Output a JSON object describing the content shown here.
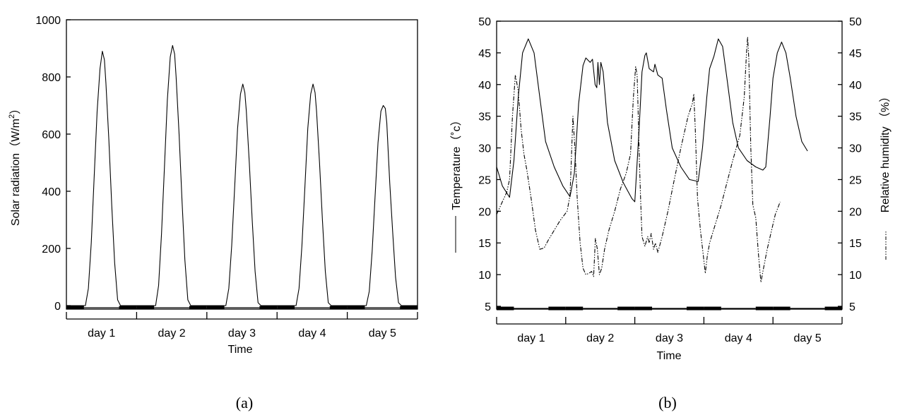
{
  "chart_data": [
    {
      "type": "line",
      "caption": "(a)",
      "xlabel": "Time",
      "ylabel": "Solar radiation (W/m²)",
      "ylabel_parts": {
        "prefix": "Solar radiation（W/m",
        "sup": "2",
        "suffix": "）"
      },
      "ylim": [
        0,
        1000
      ],
      "yticks": [
        "0",
        "200",
        "400",
        "600",
        "800",
        "1000"
      ],
      "categories": [
        "day 1",
        "day 2",
        "day 3",
        "day 4",
        "day 5"
      ],
      "x_unit": "hour of 5-day period (0–120)",
      "series": [
        {
          "style": "solid",
          "points": [
            [
              0,
              0
            ],
            [
              6.5,
              0
            ],
            [
              7.5,
              60
            ],
            [
              8.5,
              220
            ],
            [
              9.5,
              450
            ],
            [
              10.5,
              680
            ],
            [
              11.5,
              830
            ],
            [
              12.3,
              890
            ],
            [
              13,
              860
            ],
            [
              13.5,
              780
            ],
            [
              14.5,
              580
            ],
            [
              15.5,
              350
            ],
            [
              16.5,
              150
            ],
            [
              17.5,
              20
            ],
            [
              18.5,
              0
            ],
            [
              30.5,
              0
            ],
            [
              31.5,
              70
            ],
            [
              32.5,
              250
            ],
            [
              33.5,
              480
            ],
            [
              34.5,
              720
            ],
            [
              35.5,
              870
            ],
            [
              36.3,
              910
            ],
            [
              37,
              880
            ],
            [
              37.5,
              800
            ],
            [
              38.5,
              600
            ],
            [
              39.5,
              370
            ],
            [
              40.5,
              160
            ],
            [
              41.5,
              20
            ],
            [
              42.5,
              0
            ],
            [
              54.5,
              0
            ],
            [
              55.5,
              60
            ],
            [
              56.5,
              210
            ],
            [
              57.5,
              410
            ],
            [
              58.5,
              620
            ],
            [
              59.5,
              740
            ],
            [
              60.3,
              775
            ],
            [
              61,
              745
            ],
            [
              61.5,
              680
            ],
            [
              62.5,
              500
            ],
            [
              63.5,
              300
            ],
            [
              64.5,
              120
            ],
            [
              65.5,
              10
            ],
            [
              66.5,
              0
            ],
            [
              78.5,
              0
            ],
            [
              79.5,
              60
            ],
            [
              80.5,
              210
            ],
            [
              81.5,
              410
            ],
            [
              82.5,
              620
            ],
            [
              83.5,
              740
            ],
            [
              84.3,
              775
            ],
            [
              85,
              745
            ],
            [
              85.5,
              680
            ],
            [
              86.5,
              500
            ],
            [
              87.5,
              300
            ],
            [
              88.5,
              120
            ],
            [
              89.5,
              10
            ],
            [
              90.5,
              0
            ],
            [
              102.5,
              0
            ],
            [
              103.5,
              50
            ],
            [
              104.5,
              190
            ],
            [
              105.5,
              380
            ],
            [
              106.5,
              570
            ],
            [
              107.5,
              680
            ],
            [
              108.3,
              700
            ],
            [
              109,
              690
            ],
            [
              109.5,
              640
            ],
            [
              110.5,
              430
            ],
            [
              111.5,
              260
            ],
            [
              112.5,
              100
            ],
            [
              113.5,
              10
            ],
            [
              114.5,
              0
            ],
            [
              120,
              0
            ]
          ]
        }
      ]
    },
    {
      "type": "line",
      "caption": "(b)",
      "xlabel": "Time",
      "ylabel": "Temperature (°c)",
      "ylabel_text": "Temperature（˚c）",
      "ylabel_right": "Relative humidity (%)",
      "ylabel_right_text": "Relative humidity （%）",
      "ylim": [
        5,
        50
      ],
      "ylim_right": [
        5,
        50
      ],
      "yticks": [
        "5",
        "10",
        "15",
        "20",
        "25",
        "30",
        "35",
        "40",
        "45",
        "50"
      ],
      "categories": [
        "day 1",
        "day 2",
        "day 3",
        "day 4",
        "day 5"
      ],
      "x_unit": "hour of 5-day period (0–120)",
      "series": [
        {
          "axis": "left",
          "style": "solid",
          "points": [
            [
              0,
              27
            ],
            [
              2,
              24
            ],
            [
              4.5,
              22.2
            ],
            [
              6,
              28
            ],
            [
              7.5,
              38
            ],
            [
              9,
              45
            ],
            [
              11,
              47.2
            ],
            [
              13,
              45
            ],
            [
              15,
              38
            ],
            [
              17,
              31
            ],
            [
              20,
              27
            ],
            [
              23,
              24
            ],
            [
              25.5,
              22.3
            ],
            [
              27,
              26
            ],
            [
              28.5,
              37
            ],
            [
              30,
              43
            ],
            [
              31,
              44.2
            ],
            [
              32.5,
              43.5
            ],
            [
              33.3,
              44
            ],
            [
              34.2,
              40
            ],
            [
              34.8,
              39.5
            ],
            [
              35.2,
              43.5
            ],
            [
              35.7,
              40
            ],
            [
              36.2,
              43.5
            ],
            [
              37,
              42
            ],
            [
              38.5,
              34
            ],
            [
              41,
              28
            ],
            [
              44,
              24.5
            ],
            [
              47,
              22
            ],
            [
              48,
              21.5
            ],
            [
              49.5,
              33
            ],
            [
              50.5,
              42
            ],
            [
              51.5,
              44.6
            ],
            [
              52,
              45
            ],
            [
              53,
              42.5
            ],
            [
              54.5,
              42
            ],
            [
              55,
              43.2
            ],
            [
              56,
              41.5
            ],
            [
              57.5,
              41
            ],
            [
              59,
              36
            ],
            [
              61,
              30
            ],
            [
              64,
              27
            ],
            [
              67,
              25
            ],
            [
              70,
              24.7
            ],
            [
              71.5,
              30
            ],
            [
              73,
              38
            ],
            [
              74,
              42.5
            ],
            [
              75.5,
              44.5
            ],
            [
              77,
              47.2
            ],
            [
              78.5,
              46
            ],
            [
              80,
              41
            ],
            [
              82,
              34
            ],
            [
              84,
              30
            ],
            [
              87,
              28
            ],
            [
              90,
              27
            ],
            [
              92.5,
              26.5
            ],
            [
              93.5,
              27
            ],
            [
              95,
              35
            ],
            [
              96,
              41
            ],
            [
              97.5,
              45
            ],
            [
              99,
              46.7
            ],
            [
              100.5,
              45
            ],
            [
              102,
              41
            ],
            [
              104,
              35
            ],
            [
              106,
              31
            ],
            [
              108,
              29.5
            ]
          ]
        },
        {
          "axis": "right",
          "style": "dash-dot-dot",
          "points": [
            [
              0,
              19.5
            ],
            [
              2,
              21.5
            ],
            [
              3.5,
              23
            ],
            [
              4.5,
              25
            ],
            [
              5.5,
              35
            ],
            [
              6.5,
              41.5
            ],
            [
              7.5,
              39
            ],
            [
              8.5,
              33
            ],
            [
              9.5,
              29
            ],
            [
              10.5,
              26.5
            ],
            [
              12,
              22
            ],
            [
              13.5,
              17
            ],
            [
              15,
              14
            ],
            [
              16.5,
              14.2
            ],
            [
              18,
              15.5
            ],
            [
              20,
              17
            ],
            [
              22,
              18.5
            ],
            [
              24.5,
              20
            ],
            [
              25.5,
              22.5
            ],
            [
              26.5,
              35
            ],
            [
              27.2,
              30
            ],
            [
              28,
              22
            ],
            [
              29,
              15
            ],
            [
              30,
              11
            ],
            [
              31,
              10
            ],
            [
              32,
              10.2
            ],
            [
              33,
              10.5
            ],
            [
              33.7,
              9.7
            ],
            [
              34.3,
              15.7
            ],
            [
              35,
              14
            ],
            [
              35.7,
              10
            ],
            [
              36.5,
              11
            ],
            [
              37.5,
              14
            ],
            [
              39,
              17
            ],
            [
              41,
              20
            ],
            [
              43,
              23.5
            ],
            [
              45,
              26
            ],
            [
              46.5,
              29
            ],
            [
              47.5,
              38
            ],
            [
              48.3,
              42.8
            ],
            [
              48.8,
              41.5
            ],
            [
              49.2,
              35
            ],
            [
              49.6,
              28
            ],
            [
              50,
              22
            ],
            [
              50.5,
              16
            ],
            [
              51.5,
              14.5
            ],
            [
              52.5,
              16
            ],
            [
              53,
              15
            ],
            [
              53.7,
              16.5
            ],
            [
              54.5,
              14
            ],
            [
              55.2,
              15
            ],
            [
              56,
              13.5
            ],
            [
              57.5,
              16
            ],
            [
              59.5,
              20
            ],
            [
              61.5,
              24.5
            ],
            [
              64,
              30
            ],
            [
              66.5,
              35
            ],
            [
              68,
              37
            ],
            [
              68.5,
              38.5
            ],
            [
              69,
              33
            ],
            [
              69.8,
              22
            ],
            [
              70.8,
              17
            ],
            [
              71.8,
              13
            ],
            [
              72.5,
              10.2
            ],
            [
              73.2,
              13
            ],
            [
              74,
              15
            ],
            [
              76,
              18
            ],
            [
              78,
              21
            ],
            [
              80,
              24.5
            ],
            [
              82,
              28
            ],
            [
              84.5,
              32
            ],
            [
              86,
              38
            ],
            [
              86.8,
              45
            ],
            [
              87.2,
              47.5
            ],
            [
              87.6,
              44
            ],
            [
              88.3,
              30
            ],
            [
              89,
              21
            ],
            [
              90,
              19
            ],
            [
              91,
              13
            ],
            [
              91.8,
              8.8
            ],
            [
              92.7,
              11
            ],
            [
              94,
              14
            ],
            [
              95.5,
              17
            ],
            [
              96.8,
              19.5
            ],
            [
              98.5,
              21.5
            ]
          ]
        }
      ]
    }
  ]
}
